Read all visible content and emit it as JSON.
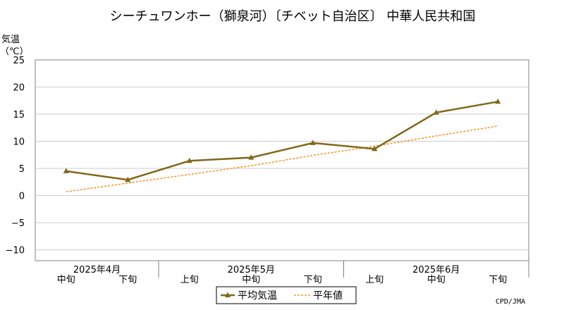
{
  "colors": {
    "mean": "#806818",
    "normal": "#ff7f00",
    "grid": "#cccccc",
    "axis": "#808080"
  },
  "chart_data": {
    "type": "line",
    "title": "シーチュワンホー（獅泉河）〔チベット自治区〕 中華人民共和国",
    "ylabel_line1": "気温",
    "ylabel_line2": "（℃）",
    "ylim": [
      -12,
      25
    ],
    "yticks": [
      -10,
      -5,
      0,
      5,
      10,
      15,
      20,
      25
    ],
    "yticks_labels": [
      "−10",
      "−5",
      "0",
      "5",
      "10",
      "15",
      "20",
      "25"
    ],
    "grid": true,
    "categories": [
      "中旬",
      "下旬",
      "上旬",
      "中旬",
      "下旬",
      "上旬",
      "中旬",
      "下旬"
    ],
    "months": [
      {
        "label": "2025年4月",
        "center_index": 0.5
      },
      {
        "label": "2025年5月",
        "center_index": 3.0
      },
      {
        "label": "2025年6月",
        "center_index": 6.0
      }
    ],
    "month_boundaries": [
      1.5,
      4.5,
      7.5
    ],
    "series": [
      {
        "name": "平均気温",
        "style": "solid-triangle",
        "values": [
          4.5,
          2.9,
          6.4,
          7.0,
          9.7,
          8.6,
          15.3,
          17.3
        ]
      },
      {
        "name": "平年値",
        "style": "dotted",
        "values": [
          0.7,
          2.3,
          3.9,
          5.5,
          7.4,
          9.1,
          11.0,
          12.8
        ]
      }
    ],
    "legend_position": "bottom-center",
    "credit": "CPD/JMA"
  }
}
